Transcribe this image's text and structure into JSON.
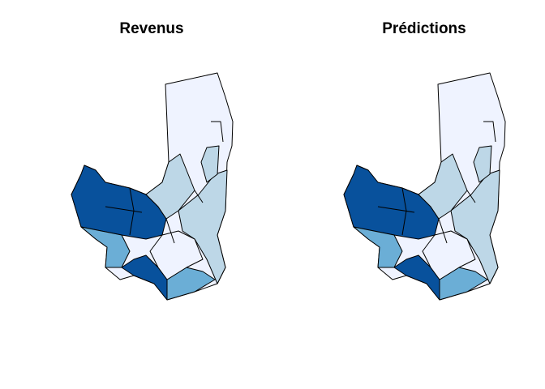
{
  "panels": [
    {
      "title": "Revenus"
    },
    {
      "title": "Prédictions"
    }
  ]
}
